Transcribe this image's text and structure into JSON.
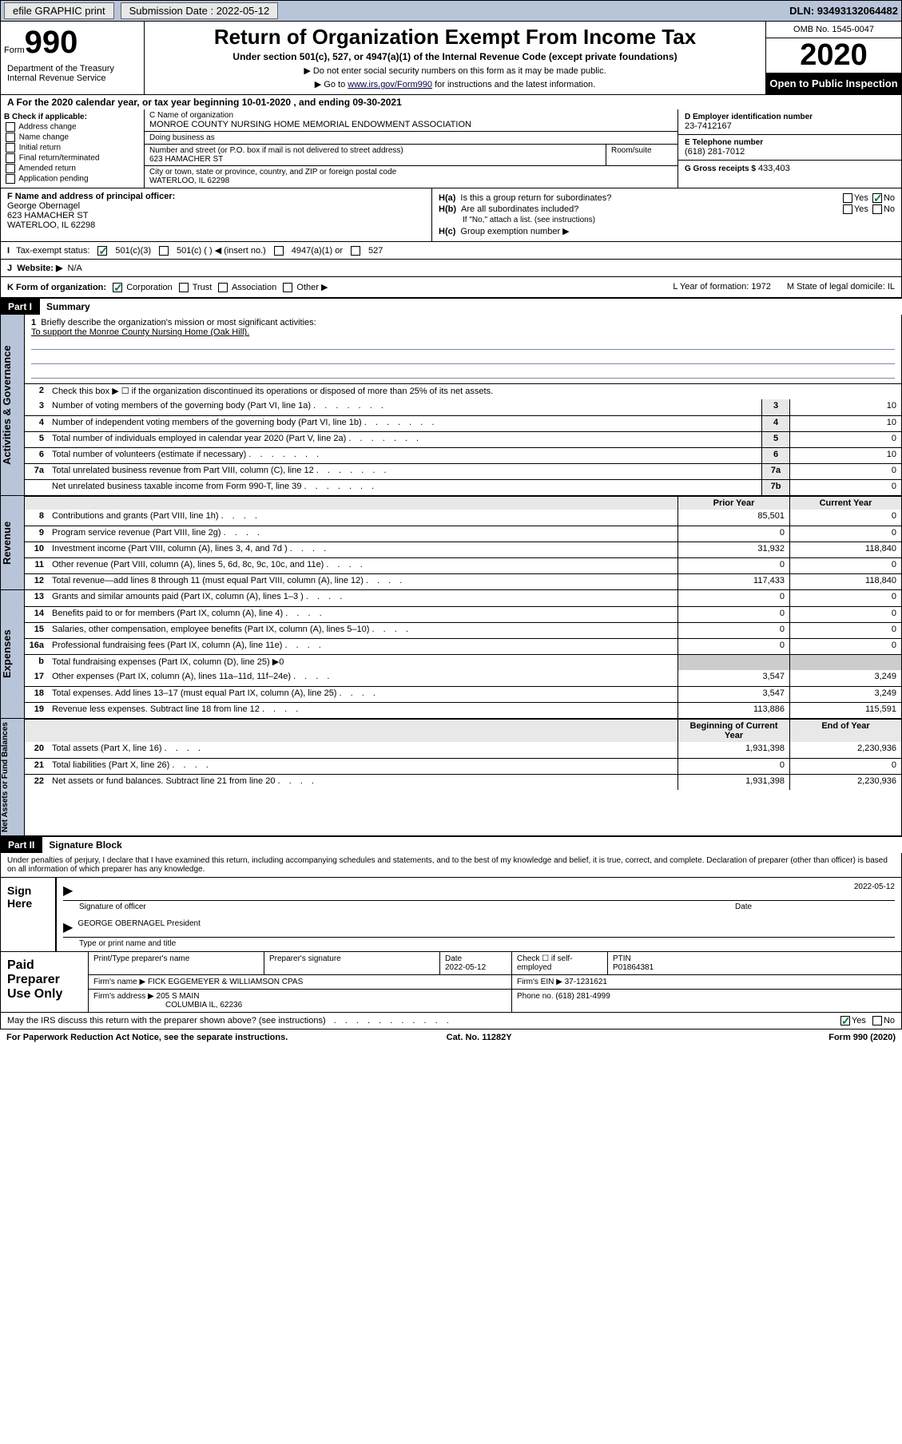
{
  "topbar": {
    "efile": "efile GRAPHIC print",
    "submission_label": "Submission Date : 2022-05-12",
    "dln": "DLN: 93493132064482"
  },
  "header": {
    "form_label": "Form",
    "form_num": "990",
    "title": "Return of Organization Exempt From Income Tax",
    "subtitle": "Under section 501(c), 527, or 4947(a)(1) of the Internal Revenue Code (except private foundations)",
    "note1": "▶ Do not enter social security numbers on this form as it may be made public.",
    "note2_pre": "▶ Go to ",
    "note2_link": "www.irs.gov/Form990",
    "note2_post": " for instructions and the latest information.",
    "dept": "Department of the Treasury\nInternal Revenue Service",
    "omb": "OMB No. 1545-0047",
    "year": "2020",
    "inspection": "Open to Public Inspection"
  },
  "line_a": "A For the 2020 calendar year, or tax year beginning 10-01-2020    , and ending 09-30-2021",
  "checkboxes": {
    "label": "B Check if applicable:",
    "items": [
      "Address change",
      "Name change",
      "Initial return",
      "Final return/terminated",
      "Amended return",
      "Application pending"
    ]
  },
  "org": {
    "name_lbl": "C Name of organization",
    "name": "MONROE COUNTY NURSING HOME MEMORIAL ENDOWMENT ASSOCIATION",
    "dba_lbl": "Doing business as",
    "dba": "",
    "addr_lbl": "Number and street (or P.O. box if mail is not delivered to street address)",
    "addr": "623 HAMACHER ST",
    "room_lbl": "Room/suite",
    "city_lbl": "City or town, state or province, country, and ZIP or foreign postal code",
    "city": "WATERLOO, IL  62298"
  },
  "right_box": {
    "ein_lbl": "D Employer identification number",
    "ein": "23-7412167",
    "phone_lbl": "E Telephone number",
    "phone": "(618) 281-7012",
    "gross_lbl": "G Gross receipts $",
    "gross": "433,403"
  },
  "f_box": {
    "lbl": "F Name and address of principal officer:",
    "name": "George Obernagel",
    "addr": "623 HAMACHER ST\nWATERLOO, IL  62298"
  },
  "h_box": {
    "ha": "Is this a group return for subordinates?",
    "hb": "Are all subordinates included?",
    "hb_note": "If \"No,\" attach a list. (see instructions)",
    "hc": "Group exemption number ▶"
  },
  "row_i": {
    "lbl": "Tax-exempt status:",
    "opts": [
      "501(c)(3)",
      "501(c) (  ) ◀ (insert no.)",
      "4947(a)(1) or",
      "527"
    ]
  },
  "row_j": {
    "lbl": "Website: ▶",
    "val": "N/A"
  },
  "row_k": {
    "lbl": "K Form of organization:",
    "opts": [
      "Corporation",
      "Trust",
      "Association",
      "Other ▶"
    ],
    "l": "L Year of formation: 1972",
    "m": "M State of legal domicile: IL"
  },
  "part1": {
    "label": "Part I",
    "title": "Summary"
  },
  "gov_tab": "Activities & Governance",
  "rev_tab": "Revenue",
  "exp_tab": "Expenses",
  "net_tab": "Net Assets or Fund Balances",
  "summary": {
    "q1": "Briefly describe the organization's mission or most significant activities:",
    "mission": "To support the Monroe County Nursing Home (Oak Hill).",
    "q2": "Check this box ▶ ☐  if the organization discontinued its operations or disposed of more than 25% of its net assets.",
    "lines": [
      {
        "n": "3",
        "d": "Number of voting members of the governing body (Part VI, line 1a)",
        "nc": "3",
        "v": "10"
      },
      {
        "n": "4",
        "d": "Number of independent voting members of the governing body (Part VI, line 1b)",
        "nc": "4",
        "v": "10"
      },
      {
        "n": "5",
        "d": "Total number of individuals employed in calendar year 2020 (Part V, line 2a)",
        "nc": "5",
        "v": "0"
      },
      {
        "n": "6",
        "d": "Total number of volunteers (estimate if necessary)",
        "nc": "6",
        "v": "10"
      },
      {
        "n": "7a",
        "d": "Total unrelated business revenue from Part VIII, column (C), line 12",
        "nc": "7a",
        "v": "0"
      },
      {
        "n": "",
        "d": "Net unrelated business taxable income from Form 990-T, line 39",
        "nc": "7b",
        "v": "0"
      }
    ],
    "col_prior": "Prior Year",
    "col_current": "Current Year",
    "col_beg": "Beginning of Current Year",
    "col_end": "End of Year",
    "revenue": [
      {
        "n": "8",
        "d": "Contributions and grants (Part VIII, line 1h)",
        "p": "85,501",
        "c": "0"
      },
      {
        "n": "9",
        "d": "Program service revenue (Part VIII, line 2g)",
        "p": "0",
        "c": "0"
      },
      {
        "n": "10",
        "d": "Investment income (Part VIII, column (A), lines 3, 4, and 7d )",
        "p": "31,932",
        "c": "118,840"
      },
      {
        "n": "11",
        "d": "Other revenue (Part VIII, column (A), lines 5, 6d, 8c, 9c, 10c, and 11e)",
        "p": "0",
        "c": "0"
      },
      {
        "n": "12",
        "d": "Total revenue—add lines 8 through 11 (must equal Part VIII, column (A), line 12)",
        "p": "117,433",
        "c": "118,840"
      }
    ],
    "expenses": [
      {
        "n": "13",
        "d": "Grants and similar amounts paid (Part IX, column (A), lines 1–3 )",
        "p": "0",
        "c": "0"
      },
      {
        "n": "14",
        "d": "Benefits paid to or for members (Part IX, column (A), line 4)",
        "p": "0",
        "c": "0"
      },
      {
        "n": "15",
        "d": "Salaries, other compensation, employee benefits (Part IX, column (A), lines 5–10)",
        "p": "0",
        "c": "0"
      },
      {
        "n": "16a",
        "d": "Professional fundraising fees (Part IX, column (A), line 11e)",
        "p": "0",
        "c": "0"
      }
    ],
    "exp_b": "Total fundraising expenses (Part IX, column (D), line 25) ▶0",
    "expenses2": [
      {
        "n": "17",
        "d": "Other expenses (Part IX, column (A), lines 11a–11d, 11f–24e)",
        "p": "3,547",
        "c": "3,249"
      },
      {
        "n": "18",
        "d": "Total expenses. Add lines 13–17 (must equal Part IX, column (A), line 25)",
        "p": "3,547",
        "c": "3,249"
      },
      {
        "n": "19",
        "d": "Revenue less expenses. Subtract line 18 from line 12",
        "p": "113,886",
        "c": "115,591"
      }
    ],
    "netassets": [
      {
        "n": "20",
        "d": "Total assets (Part X, line 16)",
        "p": "1,931,398",
        "c": "2,230,936"
      },
      {
        "n": "21",
        "d": "Total liabilities (Part X, line 26)",
        "p": "0",
        "c": "0"
      },
      {
        "n": "22",
        "d": "Net assets or fund balances. Subtract line 21 from line 20",
        "p": "1,931,398",
        "c": "2,230,936"
      }
    ]
  },
  "part2": {
    "label": "Part II",
    "title": "Signature Block"
  },
  "perjury": "Under penalties of perjury, I declare that I have examined this return, including accompanying schedules and statements, and to the best of my knowledge and belief, it is true, correct, and complete. Declaration of preparer (other than officer) is based on all information of which preparer has any knowledge.",
  "sign": {
    "here": "Sign Here",
    "sig_lbl": "Signature of officer",
    "date_lbl": "Date",
    "date": "2022-05-12",
    "name": "GEORGE OBERNAGEL President",
    "type_lbl": "Type or print name and title"
  },
  "paid": {
    "label": "Paid Preparer Use Only",
    "print_lbl": "Print/Type preparer's name",
    "sig_lbl": "Preparer's signature",
    "date_lbl": "Date",
    "date": "2022-05-12",
    "check_lbl": "Check ☐ if self-employed",
    "ptin_lbl": "PTIN",
    "ptin": "P01864381",
    "firm_name_lbl": "Firm's name    ▶",
    "firm_name": "FICK EGGEMEYER & WILLIAMSON CPAS",
    "firm_ein_lbl": "Firm's EIN ▶",
    "firm_ein": "37-1231621",
    "firm_addr_lbl": "Firm's address ▶",
    "firm_addr": "205 S MAIN",
    "firm_city": "COLUMBIA IL,  62236",
    "phone_lbl": "Phone no.",
    "phone": "(618) 281-4999"
  },
  "discuss": "May the IRS discuss this return with the preparer shown above? (see instructions)",
  "footer": {
    "left": "For Paperwork Reduction Act Notice, see the separate instructions.",
    "mid": "Cat. No. 11282Y",
    "right": "Form 990 (2020)"
  }
}
